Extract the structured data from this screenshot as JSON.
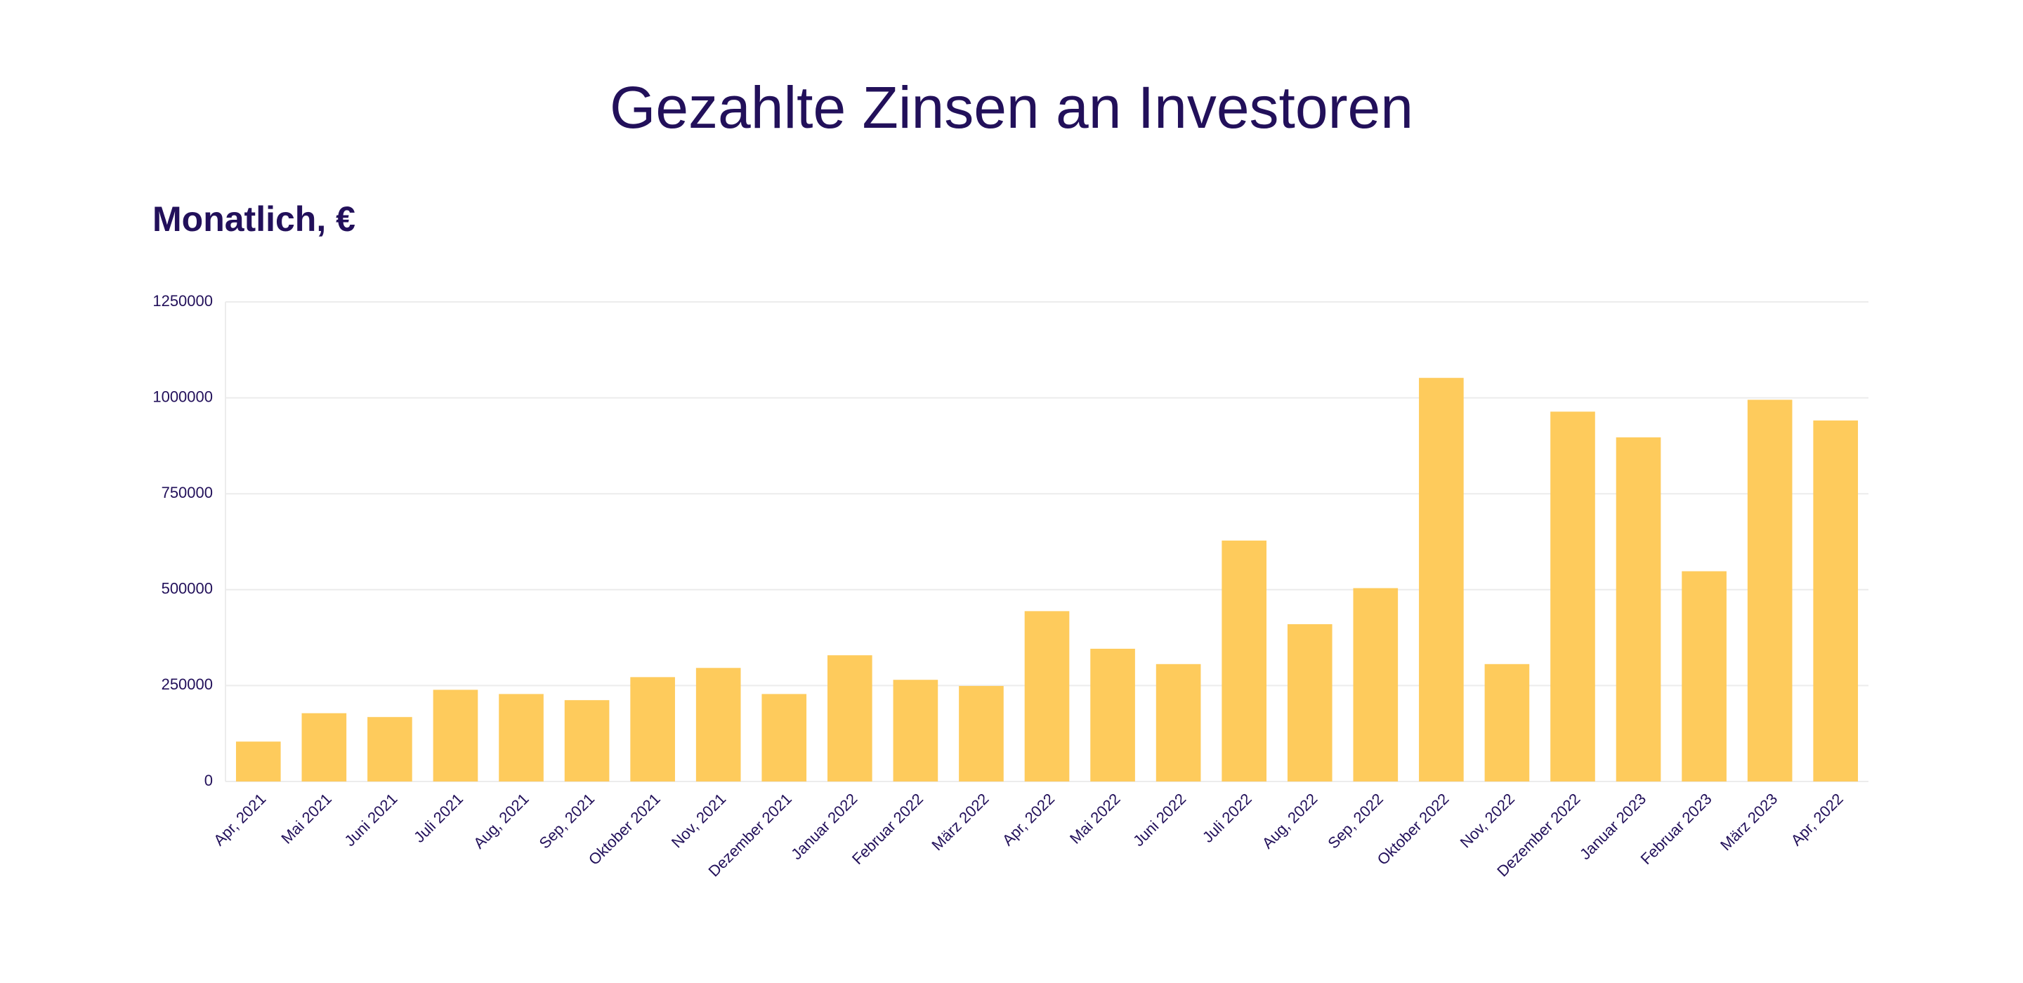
{
  "chart_data": {
    "type": "bar",
    "title": "Gezahlte Zinsen an Investoren",
    "subtitle": "Monatlich, €",
    "categories": [
      "Apr, 2021",
      "Mai 2021",
      "Juni 2021",
      "Juli 2021",
      "Aug, 2021",
      "Sep, 2021",
      "Oktober 2021",
      "Nov, 2021",
      "Dezember 2021",
      "Januar 2022",
      "Februar 2022",
      "März 2022",
      "Apr, 2022",
      "Mai 2022",
      "Juni 2022",
      "Juli 2022",
      "Aug, 2022",
      "Sep, 2022",
      "Oktober 2022",
      "Nov, 2022",
      "Dezember 2022",
      "Januar 2023",
      "Februar 2023",
      "März 2023",
      "Apr, 2022"
    ],
    "values": [
      104000,
      178000,
      168000,
      239000,
      228000,
      212000,
      272000,
      296000,
      228000,
      329000,
      265000,
      249000,
      444000,
      346000,
      306000,
      628000,
      410000,
      504000,
      1052000,
      306000,
      964000,
      897000,
      548000,
      995000,
      941000
    ],
    "color": "#fecb5c",
    "ylim": [
      0,
      1250000
    ],
    "yticks": [
      0,
      250000,
      500000,
      750000,
      1000000,
      1250000
    ],
    "grid": true
  }
}
